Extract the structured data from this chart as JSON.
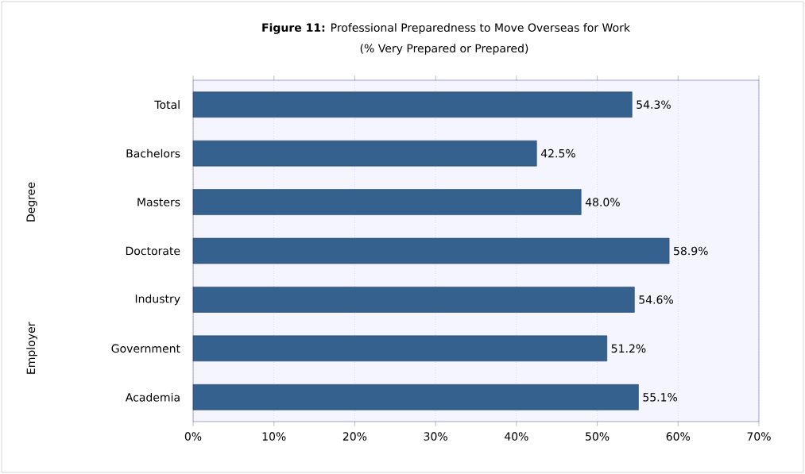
{
  "chart_data": {
    "type": "bar",
    "orientation": "horizontal",
    "title": "**Figure 11:** Professional Preparedness to Move Overseas for Work",
    "subtitle": "(% Very Prepared or Prepared)",
    "categories": [
      "Total",
      "Bachelors",
      "Masters",
      "Doctorate",
      "Industry",
      "Government",
      "Academia"
    ],
    "values": [
      54.3,
      42.5,
      48.0,
      58.9,
      54.6,
      51.2,
      55.1
    ],
    "value_labels": [
      "54.3%",
      "42.5%",
      "48.0%",
      "58.9%",
      "54.6%",
      "51.2%",
      "55.1%"
    ],
    "color": "#35618f",
    "xlim": [
      0,
      70
    ],
    "xticks": [
      {
        "value": 0,
        "label": "0%"
      },
      {
        "value": 10,
        "label": "10%"
      },
      {
        "value": 20,
        "label": "20%"
      },
      {
        "value": 30,
        "label": "30%"
      },
      {
        "value": 40,
        "label": "40%"
      },
      {
        "value": 50,
        "label": "50%"
      },
      {
        "value": 60,
        "label": "60%"
      },
      {
        "value": 70,
        "label": "70%"
      }
    ],
    "grid": "x",
    "annotations": [
      "Degree",
      "Employer"
    ]
  }
}
